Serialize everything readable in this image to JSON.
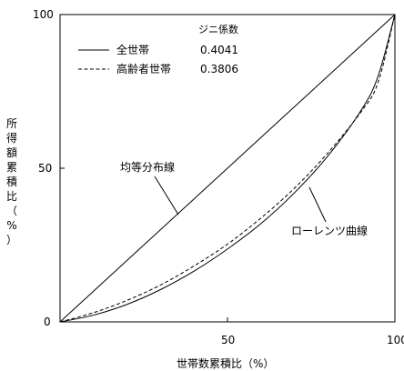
{
  "chart_data": {
    "type": "line",
    "xlabel": "世帯数累積比（%）",
    "ylabel": "所得額累積比（%）",
    "xlim": [
      0,
      100
    ],
    "ylim": [
      0,
      100
    ],
    "x_ticks": [
      "50",
      "100"
    ],
    "y_ticks": [
      "0",
      "50",
      "100"
    ],
    "grid": false,
    "legend": {
      "title": "ジニ係数",
      "placement": "top-left",
      "entries": [
        {
          "name": "全世帯",
          "value": "0.4041",
          "style": "solid"
        },
        {
          "name": "高齢者世帯",
          "value": "0.3806",
          "style": "dashed"
        }
      ]
    },
    "annotations": [
      {
        "text": "均等分布線"
      },
      {
        "text": "ローレンツ曲線"
      }
    ],
    "series": [
      {
        "name": "均等分布線",
        "style": "solid",
        "x": [
          0,
          100
        ],
        "y": [
          0,
          100
        ]
      },
      {
        "name": "全世帯",
        "style": "solid",
        "x": [
          0,
          10,
          20,
          30,
          40,
          50,
          60,
          70,
          80,
          90,
          95,
          100
        ],
        "y": [
          0,
          2.2,
          5.7,
          10.5,
          16.5,
          23.7,
          32,
          42,
          54,
          69,
          80,
          100
        ]
      },
      {
        "name": "高齢者世帯",
        "style": "dashed",
        "x": [
          0,
          10,
          20,
          30,
          40,
          50,
          60,
          70,
          80,
          90,
          95,
          100
        ],
        "y": [
          0,
          3,
          7,
          12,
          18.2,
          25.3,
          33.8,
          43.5,
          55,
          68.5,
          78,
          100
        ]
      }
    ]
  }
}
